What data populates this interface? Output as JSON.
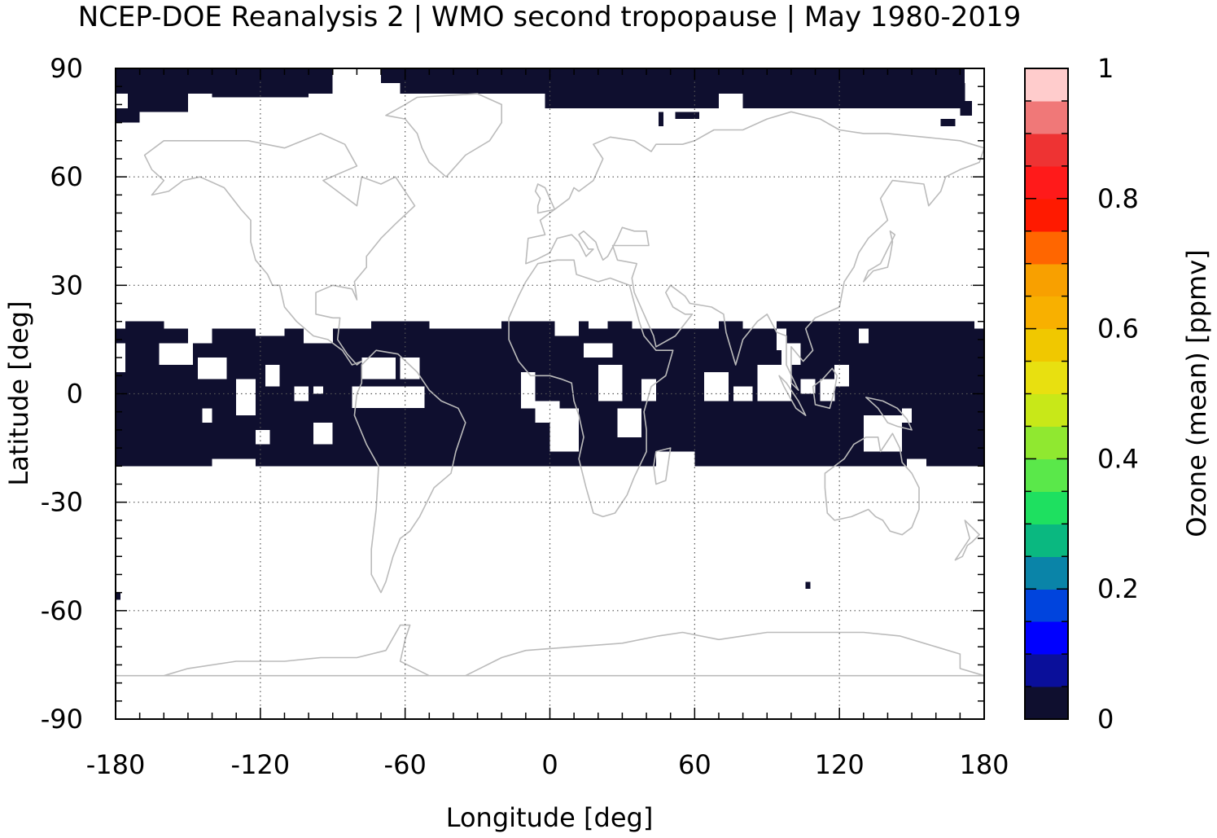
{
  "title": "NCEP-DOE Reanalysis 2 | WMO second tropopause | May 1980-2019",
  "chart_data": {
    "type": "heatmap",
    "title": "NCEP-DOE Reanalysis 2 | WMO second tropopause | May 1980-2019",
    "xlabel": "Longitude [deg]",
    "ylabel": "Latitude [deg]",
    "colorbar_label": "Ozone (mean) [ppmv]",
    "xlim": [
      -180,
      180
    ],
    "ylim": [
      -90,
      90
    ],
    "xticks": [
      "-180",
      "-120",
      "-60",
      "0",
      "60",
      "120",
      "180"
    ],
    "yticks": [
      "90",
      "60",
      "30",
      "0",
      "-30",
      "-60",
      "-90"
    ],
    "colorbar_ticks": [
      "1",
      "0.8",
      "0.6",
      "0.4",
      "0.2",
      "0"
    ],
    "colorbar_range": [
      0,
      1
    ],
    "colorbar_colors": [
      "#0f0f2f",
      "#0a0f9a",
      "#0000ff",
      "#0044dd",
      "#0a84a8",
      "#0ab880",
      "#1ee060",
      "#5ae84a",
      "#90e830",
      "#c8e818",
      "#e8e010",
      "#f0c800",
      "#f8b000",
      "#f8a000",
      "#ff6600",
      "#ff1a00",
      "#ff1a1a",
      "#ee3333",
      "#f07878",
      "#ffcccc"
    ],
    "grid": true,
    "grid_style": "dotted",
    "coastlines": true,
    "observed_value_color": "#0f0f2f",
    "observed_value_note_ppmv": "0-0.05",
    "regions": [
      {
        "name": "Arctic band",
        "lon": [
          -180,
          180
        ],
        "lat": [
          75,
          90
        ]
      },
      {
        "name": "Tropical band",
        "lon": [
          -180,
          180
        ],
        "lat": [
          -20,
          20
        ]
      },
      {
        "name": "Isolated point",
        "lon": [
          -180,
          -178
        ],
        "lat": [
          -57,
          -55
        ]
      },
      {
        "name": "Isolated point",
        "lon": [
          106,
          108
        ],
        "lat": [
          -54,
          -52
        ]
      }
    ]
  }
}
